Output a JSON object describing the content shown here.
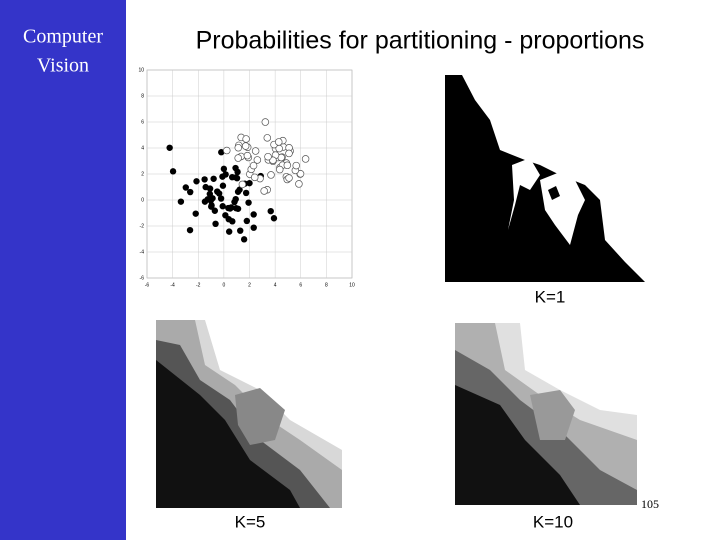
{
  "sidebar": {
    "lines": [
      "Computer",
      "Vision"
    ]
  },
  "header": {
    "title": "Probabilities for partitioning - proportions"
  },
  "scatter": {
    "xlim": [
      -6,
      10
    ],
    "ylim": [
      -6,
      10
    ],
    "xticks": [
      -6,
      -4,
      -2,
      0,
      2,
      4,
      6,
      8,
      10
    ],
    "yticks": [
      -6,
      -4,
      -2,
      0,
      2,
      4,
      6,
      8,
      10
    ]
  },
  "figures": [
    {
      "label": "K=1"
    },
    {
      "label": "K=5"
    },
    {
      "label": "K=10"
    }
  ],
  "page_number": "105"
}
